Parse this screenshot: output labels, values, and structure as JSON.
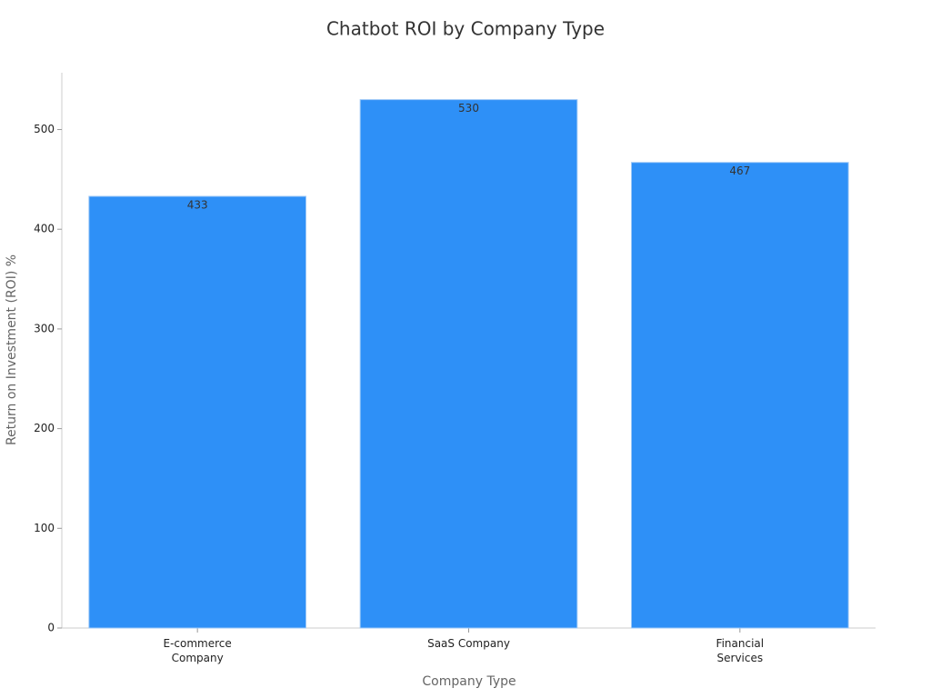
{
  "chart_data": {
    "type": "bar",
    "title": "Chatbot ROI by Company Type",
    "x_label": "Company Type",
    "y_label": "Return on Investment (ROI) %",
    "categories": [
      "E-commerce\nCompany",
      "SaaS Company",
      "Financial\nServices"
    ],
    "values": [
      433,
      530,
      467
    ],
    "color": "#2e90f7",
    "ylim": [
      0,
      557
    ],
    "yticks": [
      0,
      100,
      200,
      300,
      400,
      500
    ],
    "grid": false
  }
}
